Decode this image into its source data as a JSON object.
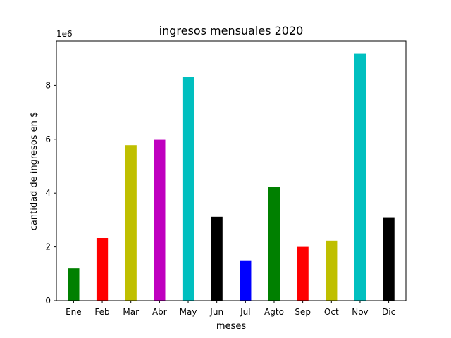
{
  "chart_data": {
    "type": "bar",
    "title": "ingresos mensuales 2020",
    "xlabel": "meses",
    "ylabel": "cantidad de ingresos en $",
    "y_offset_label": "1e6",
    "categories": [
      "Ene",
      "Feb",
      "Mar",
      "Abr",
      "May",
      "Jun",
      "Jul",
      "Agto",
      "Sep",
      "Oct",
      "Nov",
      "Dic"
    ],
    "values": [
      1200000,
      2330000,
      5780000,
      5980000,
      8320000,
      3120000,
      1500000,
      4220000,
      2000000,
      2230000,
      9200000,
      3100000
    ],
    "colors": [
      "#008000",
      "#ff0000",
      "#bfbf00",
      "#bf00bf",
      "#00bfbf",
      "#000000",
      "#0000ff",
      "#008000",
      "#ff0000",
      "#bfbf00",
      "#00bfbf",
      "#000000"
    ],
    "ylim": [
      0,
      9660000
    ],
    "y_ticks": [
      0,
      2,
      4,
      6,
      8
    ],
    "y_tick_scale": 1000000,
    "grid": false,
    "legend": "none"
  }
}
